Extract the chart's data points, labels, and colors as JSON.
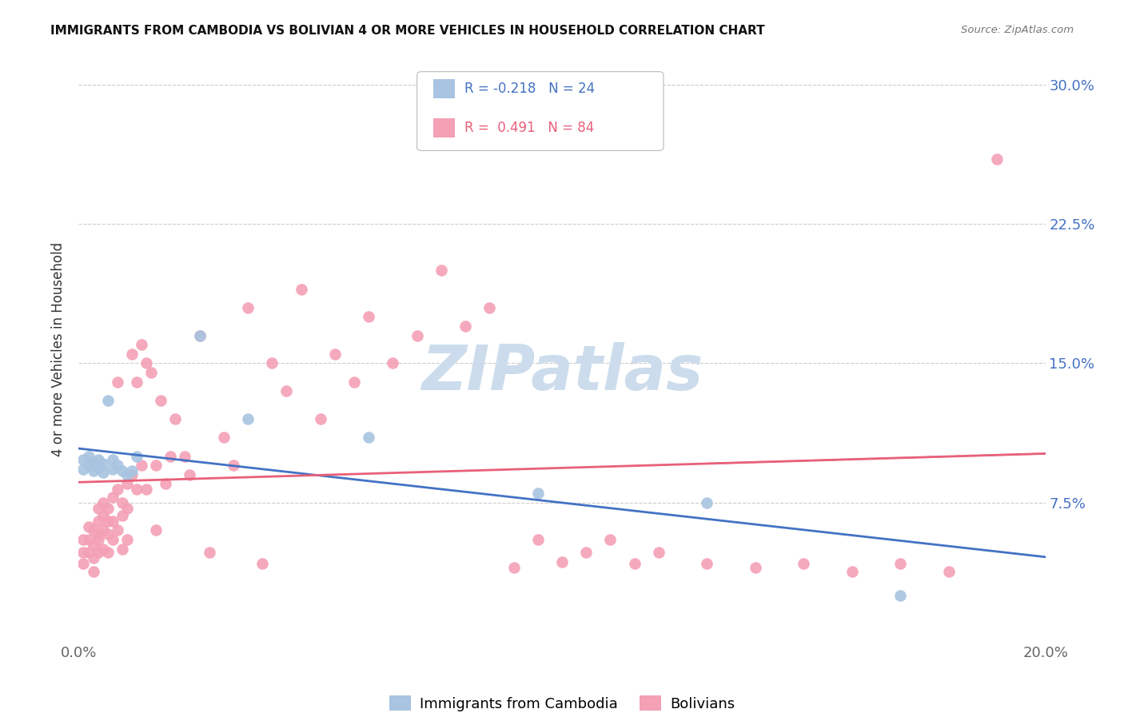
{
  "title": "IMMIGRANTS FROM CAMBODIA VS BOLIVIAN 4 OR MORE VEHICLES IN HOUSEHOLD CORRELATION CHART",
  "source": "Source: ZipAtlas.com",
  "ylabel": "4 or more Vehicles in Household",
  "ytick_labels": [
    "30.0%",
    "22.5%",
    "15.0%",
    "7.5%"
  ],
  "ytick_values": [
    0.3,
    0.225,
    0.15,
    0.075
  ],
  "xlim": [
    0.0,
    0.2
  ],
  "ylim": [
    0.0,
    0.315
  ],
  "legend_cambodia": "Immigrants from Cambodia",
  "legend_bolivian": "Bolivians",
  "R_cambodia": -0.218,
  "N_cambodia": 24,
  "R_bolivian": 0.491,
  "N_bolivian": 84,
  "color_cambodia": "#a8c4e0",
  "color_bolivian": "#f4a0b5",
  "line_color_cambodia": "#4472c4",
  "line_color_bolivian": "#e8607a",
  "watermark": "ZIPatlas",
  "watermark_color": "#ccdcec",
  "cambodia_x": [
    0.001,
    0.001,
    0.002,
    0.002,
    0.003,
    0.003,
    0.004,
    0.004,
    0.005,
    0.005,
    0.006,
    0.007,
    0.007,
    0.008,
    0.009,
    0.01,
    0.011,
    0.012,
    0.025,
    0.035,
    0.06,
    0.095,
    0.13,
    0.17
  ],
  "cambodia_y": [
    0.098,
    0.093,
    0.1,
    0.095,
    0.097,
    0.092,
    0.098,
    0.094,
    0.096,
    0.091,
    0.13,
    0.098,
    0.093,
    0.095,
    0.092,
    0.09,
    0.092,
    0.1,
    0.165,
    0.12,
    0.11,
    0.08,
    0.075,
    0.025
  ],
  "bolivian_x": [
    0.001,
    0.001,
    0.001,
    0.002,
    0.002,
    0.002,
    0.003,
    0.003,
    0.003,
    0.003,
    0.004,
    0.004,
    0.004,
    0.004,
    0.004,
    0.005,
    0.005,
    0.005,
    0.005,
    0.006,
    0.006,
    0.006,
    0.006,
    0.007,
    0.007,
    0.007,
    0.008,
    0.008,
    0.008,
    0.009,
    0.009,
    0.009,
    0.01,
    0.01,
    0.01,
    0.011,
    0.011,
    0.012,
    0.012,
    0.013,
    0.013,
    0.014,
    0.014,
    0.015,
    0.016,
    0.016,
    0.017,
    0.018,
    0.019,
    0.02,
    0.022,
    0.023,
    0.025,
    0.027,
    0.03,
    0.032,
    0.035,
    0.038,
    0.04,
    0.043,
    0.046,
    0.05,
    0.053,
    0.057,
    0.06,
    0.065,
    0.07,
    0.075,
    0.08,
    0.085,
    0.09,
    0.095,
    0.1,
    0.105,
    0.11,
    0.115,
    0.12,
    0.13,
    0.14,
    0.15,
    0.16,
    0.17,
    0.18,
    0.19
  ],
  "bolivian_y": [
    0.048,
    0.055,
    0.042,
    0.055,
    0.062,
    0.048,
    0.06,
    0.052,
    0.045,
    0.038,
    0.065,
    0.058,
    0.072,
    0.048,
    0.055,
    0.068,
    0.06,
    0.075,
    0.05,
    0.065,
    0.058,
    0.072,
    0.048,
    0.078,
    0.065,
    0.055,
    0.14,
    0.082,
    0.06,
    0.075,
    0.068,
    0.05,
    0.085,
    0.072,
    0.055,
    0.155,
    0.09,
    0.14,
    0.082,
    0.16,
    0.095,
    0.15,
    0.082,
    0.145,
    0.095,
    0.06,
    0.13,
    0.085,
    0.1,
    0.12,
    0.1,
    0.09,
    0.165,
    0.048,
    0.11,
    0.095,
    0.18,
    0.042,
    0.15,
    0.135,
    0.19,
    0.12,
    0.155,
    0.14,
    0.175,
    0.15,
    0.165,
    0.2,
    0.17,
    0.18,
    0.04,
    0.055,
    0.043,
    0.048,
    0.055,
    0.042,
    0.048,
    0.042,
    0.04,
    0.042,
    0.038,
    0.042,
    0.038,
    0.26
  ]
}
